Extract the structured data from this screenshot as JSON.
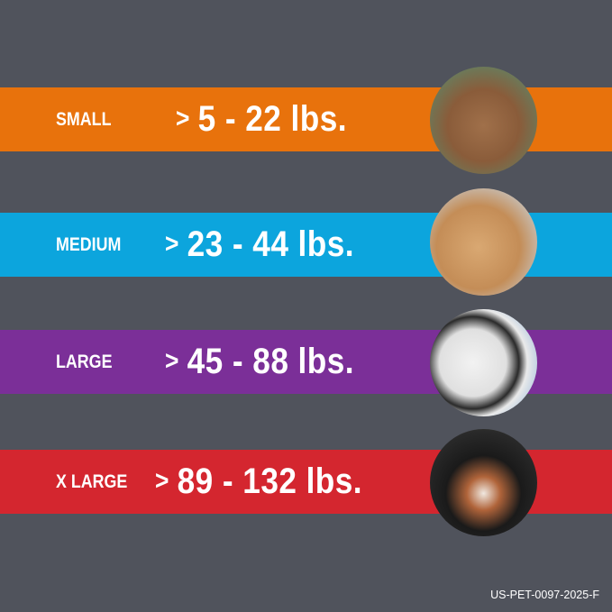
{
  "sizes": [
    {
      "label": "SMALL",
      "range": "5 - 22 lbs.",
      "color": "#e8720c",
      "dog_image": "terrier-photo"
    },
    {
      "label": "MEDIUM",
      "range": "23 - 44 lbs.",
      "color": "#0ca5dd",
      "dog_image": "cocker-spaniel-photo"
    },
    {
      "label": "LARGE",
      "range": "45 - 88 lbs.",
      "color": "#7b2f98",
      "dog_image": "dalmatian-photo"
    },
    {
      "label": "X LARGE",
      "range": "89 - 132 lbs.",
      "color": "#d4262f",
      "dog_image": "bernese-mountain-dog-photo"
    }
  ],
  "prefix": ">",
  "background": "#50535c",
  "footer_code": "US-PET-0097-2025-F"
}
